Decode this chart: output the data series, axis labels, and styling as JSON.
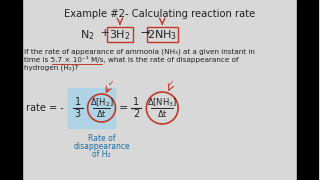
{
  "title": "Example #2- Calculating reaction rate",
  "bg_color": "#d8d8d8",
  "content_bg": "#e8e8e8",
  "text_color": "#222222",
  "box_color": "#c0392b",
  "highlight_box_color": "#a8d4e8",
  "caption_color": "#1a6fa8",
  "problem_line1": "If the rate of appearance of ammonia (NH₃) at a given instant in",
  "problem_line2": "time is 5.7 × 10⁻¹ M/s, what is the rate of disappearance of",
  "problem_line3": "hydrogen (H₂)?",
  "caption_lines": [
    "Rate of",
    "disappearance",
    "of H₂"
  ],
  "left_bar_width": 22,
  "right_bar_width": 22
}
